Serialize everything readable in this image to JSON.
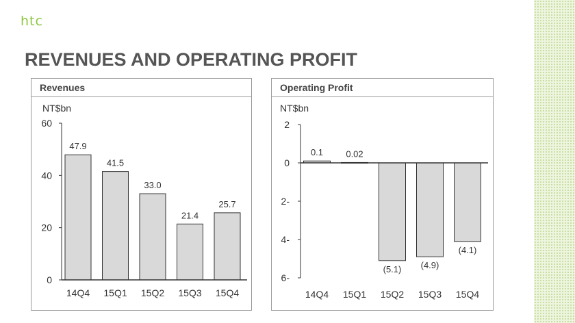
{
  "brand": {
    "logo_text": "htc",
    "accent": "#8cc63f"
  },
  "slide_title": "REVENUES AND OPERATING PROFIT",
  "chart_data": [
    {
      "type": "bar",
      "title": "Revenues",
      "ylabel": "NT$bn",
      "categories": [
        "14Q4",
        "15Q1",
        "15Q2",
        "15Q3",
        "15Q4"
      ],
      "values": [
        47.9,
        41.5,
        33.0,
        21.4,
        25.7
      ],
      "value_labels": [
        "47.9",
        "41.5",
        "33.0",
        "21.4",
        "25.7"
      ],
      "ylim": [
        0,
        60
      ],
      "yticks": [
        0,
        20,
        40,
        60
      ],
      "ytick_labels": [
        "0",
        "20",
        "40",
        "60"
      ],
      "grid": false,
      "bar_color": "#d9d9d9"
    },
    {
      "type": "bar",
      "title": "Operating Profit",
      "ylabel": "NT$bn",
      "categories": [
        "14Q4",
        "15Q1",
        "15Q2",
        "15Q3",
        "15Q4"
      ],
      "values": [
        0.1,
        0.02,
        -5.1,
        -4.9,
        -4.1
      ],
      "value_labels": [
        "0.1",
        "0.02",
        "(5.1)",
        "(4.9)",
        "(4.1)"
      ],
      "ylim": [
        -6,
        2
      ],
      "yticks": [
        2,
        0,
        -2,
        -4,
        -6
      ],
      "ytick_labels": [
        "2",
        "0",
        "2-",
        "4-",
        "6-"
      ],
      "grid": false,
      "bar_color": "#d9d9d9"
    }
  ]
}
